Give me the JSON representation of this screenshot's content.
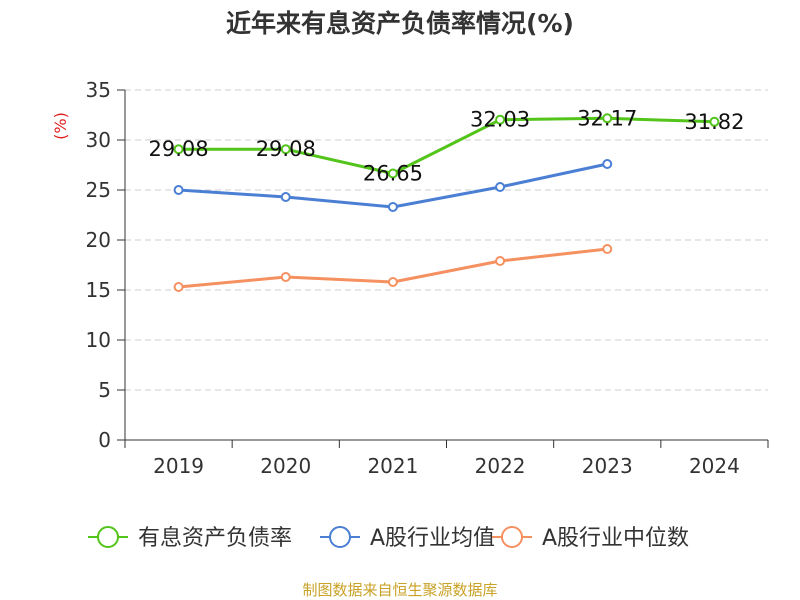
{
  "chart_data": {
    "type": "line",
    "title": "近年来有息资产负债率情况(%)",
    "ylabel": "(%)",
    "xlabel": "",
    "categories": [
      "2019",
      "2020",
      "2021",
      "2022",
      "2023",
      "2024"
    ],
    "ylim": [
      0,
      35
    ],
    "yticks": [
      "0",
      "5",
      "10",
      "15",
      "20",
      "25",
      "30",
      "35"
    ],
    "grid": true,
    "legend_position": "bottom",
    "series": [
      {
        "name": "有息资产负债率",
        "color": "#52c41a",
        "values": [
          29.08,
          29.08,
          26.65,
          32.03,
          32.17,
          31.82
        ],
        "labels": [
          "29.08",
          "29.08",
          "26.65",
          "32.03",
          "32.17",
          "31.82"
        ]
      },
      {
        "name": "A股行业均值",
        "color": "#4a7fd4",
        "values": [
          25.0,
          24.3,
          23.3,
          25.3,
          27.6,
          null
        ]
      },
      {
        "name": "A股行业中位数",
        "color": "#f59160",
        "values": [
          15.3,
          16.3,
          15.8,
          17.9,
          19.1,
          null
        ]
      }
    ]
  },
  "source": "制图数据来自恒生聚源数据库",
  "colors": {
    "title": "#333333",
    "axis": "#333333",
    "ylabel": "#e02020",
    "grid": "#cccccc",
    "source": "#c9a227"
  }
}
